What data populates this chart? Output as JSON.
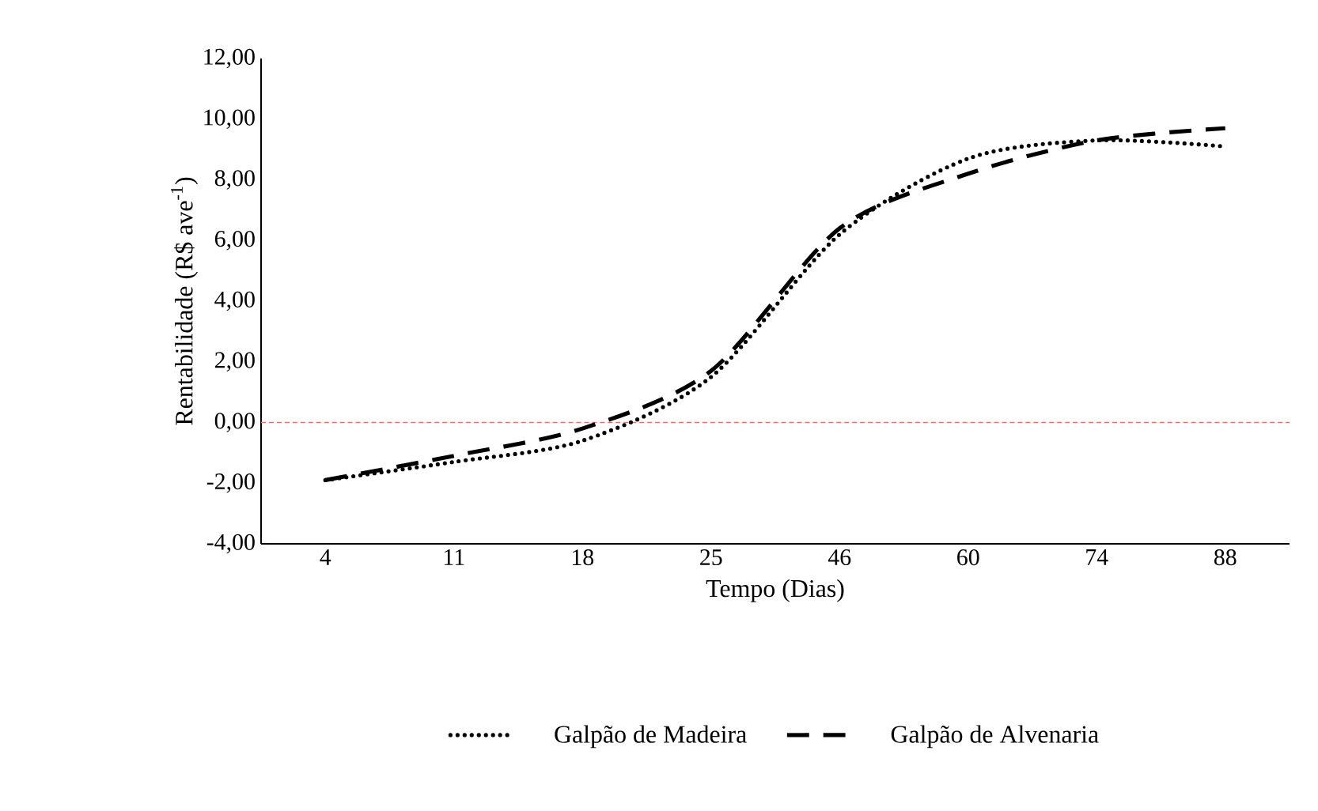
{
  "chart_data": {
    "type": "line",
    "xlabel": "Tempo (Dias)",
    "ylabel": "Rentabilidade (R$ ave$^{-1}$)",
    "categories": [
      "4",
      "11",
      "18",
      "25",
      "46",
      "60",
      "74",
      "88"
    ],
    "series": [
      {
        "name": "Galpão de Madeira",
        "color": "#000000",
        "line_style": "dotted",
        "values": [
          -1.9,
          -1.3,
          -0.6,
          1.5,
          6.2,
          8.7,
          9.3,
          9.1
        ]
      },
      {
        "name": "Galpão de Alvenaria",
        "color": "#000000",
        "line_style": "dashed",
        "values": [
          -1.9,
          -1.1,
          -0.2,
          1.7,
          6.4,
          8.2,
          9.3,
          9.7
        ]
      }
    ],
    "ylim": [
      -4,
      12
    ],
    "yticks": [
      {
        "value": -4,
        "label": "-4,00"
      },
      {
        "value": -2,
        "label": "-2,00"
      },
      {
        "value": 0,
        "label": "0,00"
      },
      {
        "value": 2,
        "label": "2,00"
      },
      {
        "value": 4,
        "label": "4,00"
      },
      {
        "value": 6,
        "label": "6,00"
      },
      {
        "value": 8,
        "label": "8,00"
      },
      {
        "value": 10,
        "label": "10,00"
      },
      {
        "value": 12,
        "label": "12,00"
      }
    ],
    "ref_lines": [
      {
        "axis": "y",
        "value": 0,
        "color": "#ff6666",
        "line_style": "dashed"
      }
    ],
    "grid": false,
    "legend": "bottom",
    "marker": "none"
  }
}
